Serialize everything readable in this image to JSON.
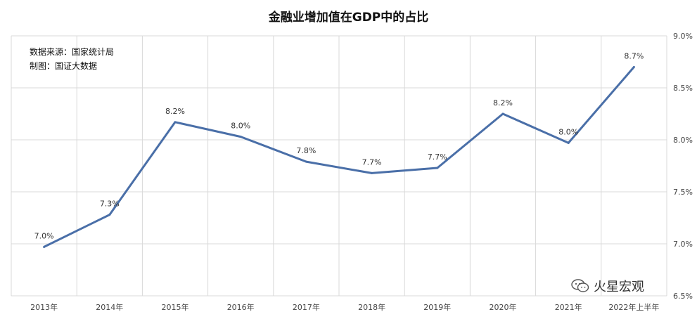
{
  "chart_data": {
    "type": "line",
    "title": "金融业增加值在GDP中的占比",
    "categories": [
      "2013年",
      "2014年",
      "2015年",
      "2016年",
      "2017年",
      "2018年",
      "2019年",
      "2020年",
      "2021年",
      "2022年上半年"
    ],
    "series": [
      {
        "values": [
          6.97,
          7.28,
          8.17,
          8.03,
          7.79,
          7.68,
          7.73,
          8.25,
          7.97,
          8.7
        ],
        "data_labels": [
          "7.0%",
          "7.3%",
          "8.2%",
          "8.0%",
          "7.8%",
          "7.7%",
          "7.7%",
          "8.2%",
          "8.0%",
          "8.7%"
        ],
        "color": "#4a6fa8"
      }
    ],
    "ylim": [
      6.5,
      9.0
    ],
    "y_ticks": [
      "6.5%",
      "7.0%",
      "7.5%",
      "8.0%",
      "8.5%",
      "9.0%"
    ],
    "y_axis_side": "right",
    "grid": true,
    "xlabel": "",
    "ylabel": ""
  },
  "annotations": {
    "source": "数据来源：国家统计局",
    "maker": "制图：国证大数据"
  },
  "watermark": {
    "text": "火星宏观",
    "icon": "wechat-icon"
  }
}
